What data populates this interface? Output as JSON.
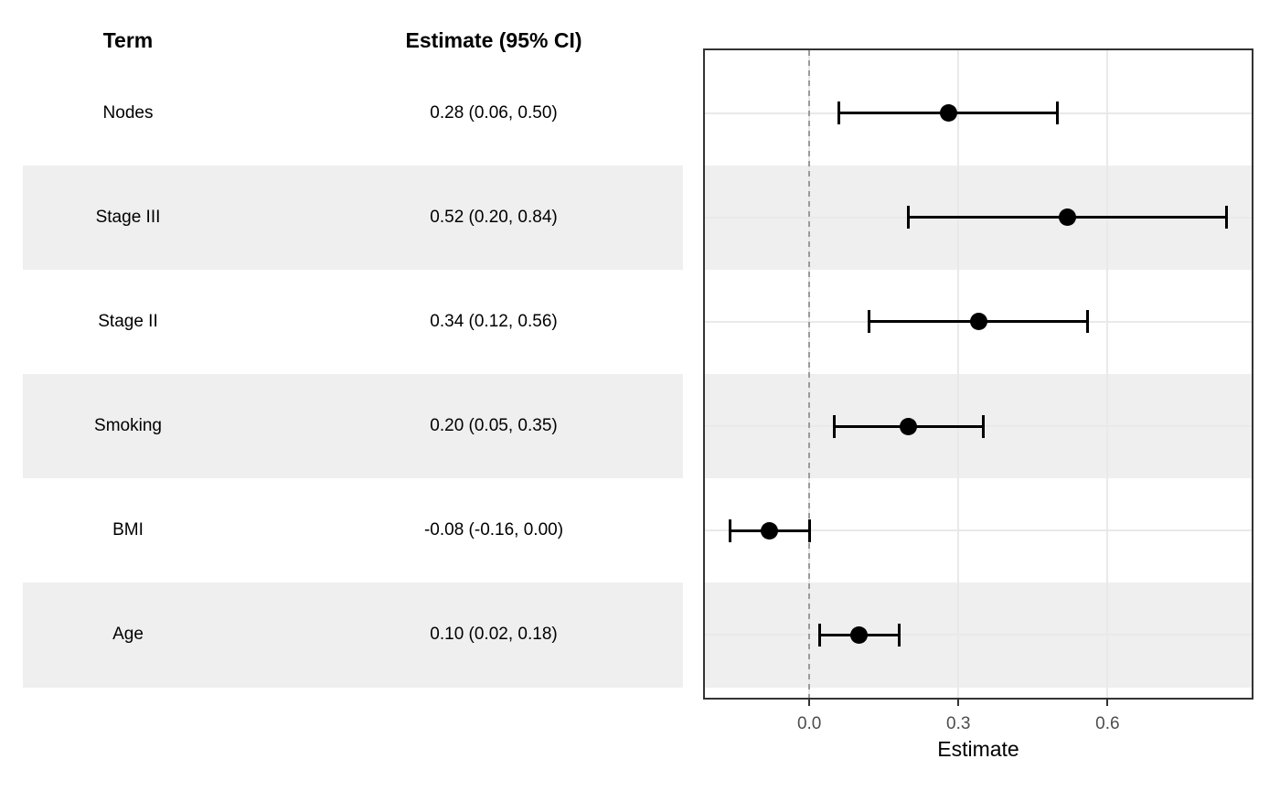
{
  "table": {
    "term_header": "Term",
    "estimate_header": "Estimate (95% CI)",
    "rows": [
      {
        "term": "Nodes",
        "estimate_label": "0.28 (0.06, 0.50)",
        "striped": false
      },
      {
        "term": "Stage III",
        "estimate_label": "0.52 (0.20, 0.84)",
        "striped": true
      },
      {
        "term": "Stage II",
        "estimate_label": "0.34 (0.12, 0.56)",
        "striped": false
      },
      {
        "term": "Smoking",
        "estimate_label": "0.20 (0.05, 0.35)",
        "striped": true
      },
      {
        "term": "BMI",
        "estimate_label": "-0.08 (-0.16, 0.00)",
        "striped": false
      },
      {
        "term": "Age",
        "estimate_label": "0.10 (0.02, 0.18)",
        "striped": true
      }
    ]
  },
  "chart_data": {
    "type": "scatter",
    "subtype": "forest-plot",
    "categories": [
      "Nodes",
      "Stage III",
      "Stage II",
      "Smoking",
      "BMI",
      "Age"
    ],
    "estimates": [
      0.28,
      0.52,
      0.34,
      0.2,
      -0.08,
      0.1
    ],
    "ci_low": [
      0.06,
      0.2,
      0.12,
      0.05,
      -0.16,
      0.02
    ],
    "ci_high": [
      0.5,
      0.84,
      0.56,
      0.35,
      0.0,
      0.18
    ],
    "xlabel": "Estimate",
    "xticks": [
      0.0,
      0.3,
      0.6
    ],
    "xtick_labels": [
      "0.0",
      "0.3",
      "0.6"
    ],
    "xlim": [
      -0.21,
      0.89
    ],
    "reference_line_x": 0.0,
    "grid": true,
    "legend": "none"
  },
  "colors": {
    "stripe": "#efefef",
    "gridline": "#e9e9e9",
    "panel_border": "#333333",
    "reference_line": "#9b9b9b",
    "data": "#000000",
    "tick_label": "#4d4d4d"
  }
}
